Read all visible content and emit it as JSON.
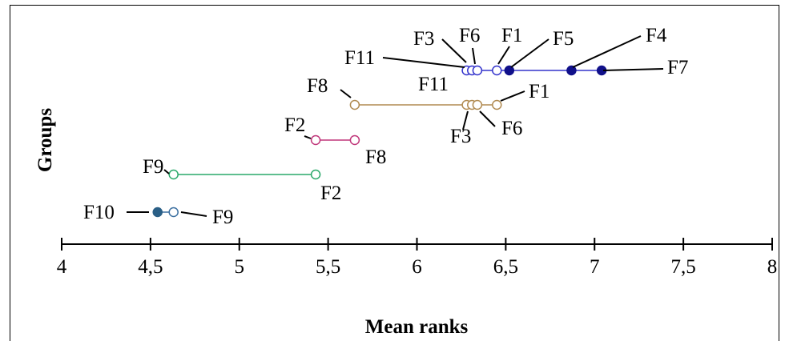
{
  "chart_data": {
    "type": "scatter",
    "title": "",
    "xlabel": "Mean ranks",
    "ylabel": "Groups",
    "xlim": [
      4,
      8
    ],
    "xticks": [
      4,
      4.5,
      5,
      5.5,
      6,
      6.5,
      7,
      7.5,
      8
    ],
    "xtick_labels": [
      "4",
      "4,5",
      "5",
      "5,5",
      "6",
      "6,5",
      "7",
      "7,5",
      "8"
    ],
    "grid": false,
    "groups": [
      {
        "name": "group-1",
        "color": "#3333cc",
        "points": [
          {
            "label": "F11",
            "x": 6.28,
            "filled": false
          },
          {
            "label": "F3",
            "x": 6.31,
            "filled": false
          },
          {
            "label": "F6",
            "x": 6.34,
            "filled": false
          },
          {
            "label": "F1",
            "x": 6.45,
            "filled": false
          },
          {
            "label": "F5",
            "x": 6.52,
            "filled": true
          },
          {
            "label": "F4",
            "x": 6.87,
            "filled": true
          },
          {
            "label": "F7",
            "x": 7.04,
            "filled": true
          }
        ]
      },
      {
        "name": "group-2",
        "color": "#b08a50",
        "points": [
          {
            "label": "F8",
            "x": 5.65,
            "filled": false
          },
          {
            "label": "F11",
            "x": 6.28,
            "filled": false
          },
          {
            "label": "F3",
            "x": 6.31,
            "filled": false
          },
          {
            "label": "F6",
            "x": 6.34,
            "filled": false
          },
          {
            "label": "F1",
            "x": 6.45,
            "filled": false
          }
        ]
      },
      {
        "name": "group-3",
        "color": "#c0367a",
        "points": [
          {
            "label": "F2",
            "x": 5.43,
            "filled": false
          },
          {
            "label": "F8",
            "x": 5.65,
            "filled": false
          }
        ]
      },
      {
        "name": "group-4",
        "color": "#2aa86a",
        "points": [
          {
            "label": "F9",
            "x": 4.63,
            "filled": false
          },
          {
            "label": "F2",
            "x": 5.43,
            "filled": false
          }
        ]
      },
      {
        "name": "group-5",
        "color": "#3b6fa0",
        "points": [
          {
            "label": "F10",
            "x": 4.54,
            "filled": true
          },
          {
            "label": "F9",
            "x": 4.63,
            "filled": false
          }
        ]
      }
    ]
  }
}
